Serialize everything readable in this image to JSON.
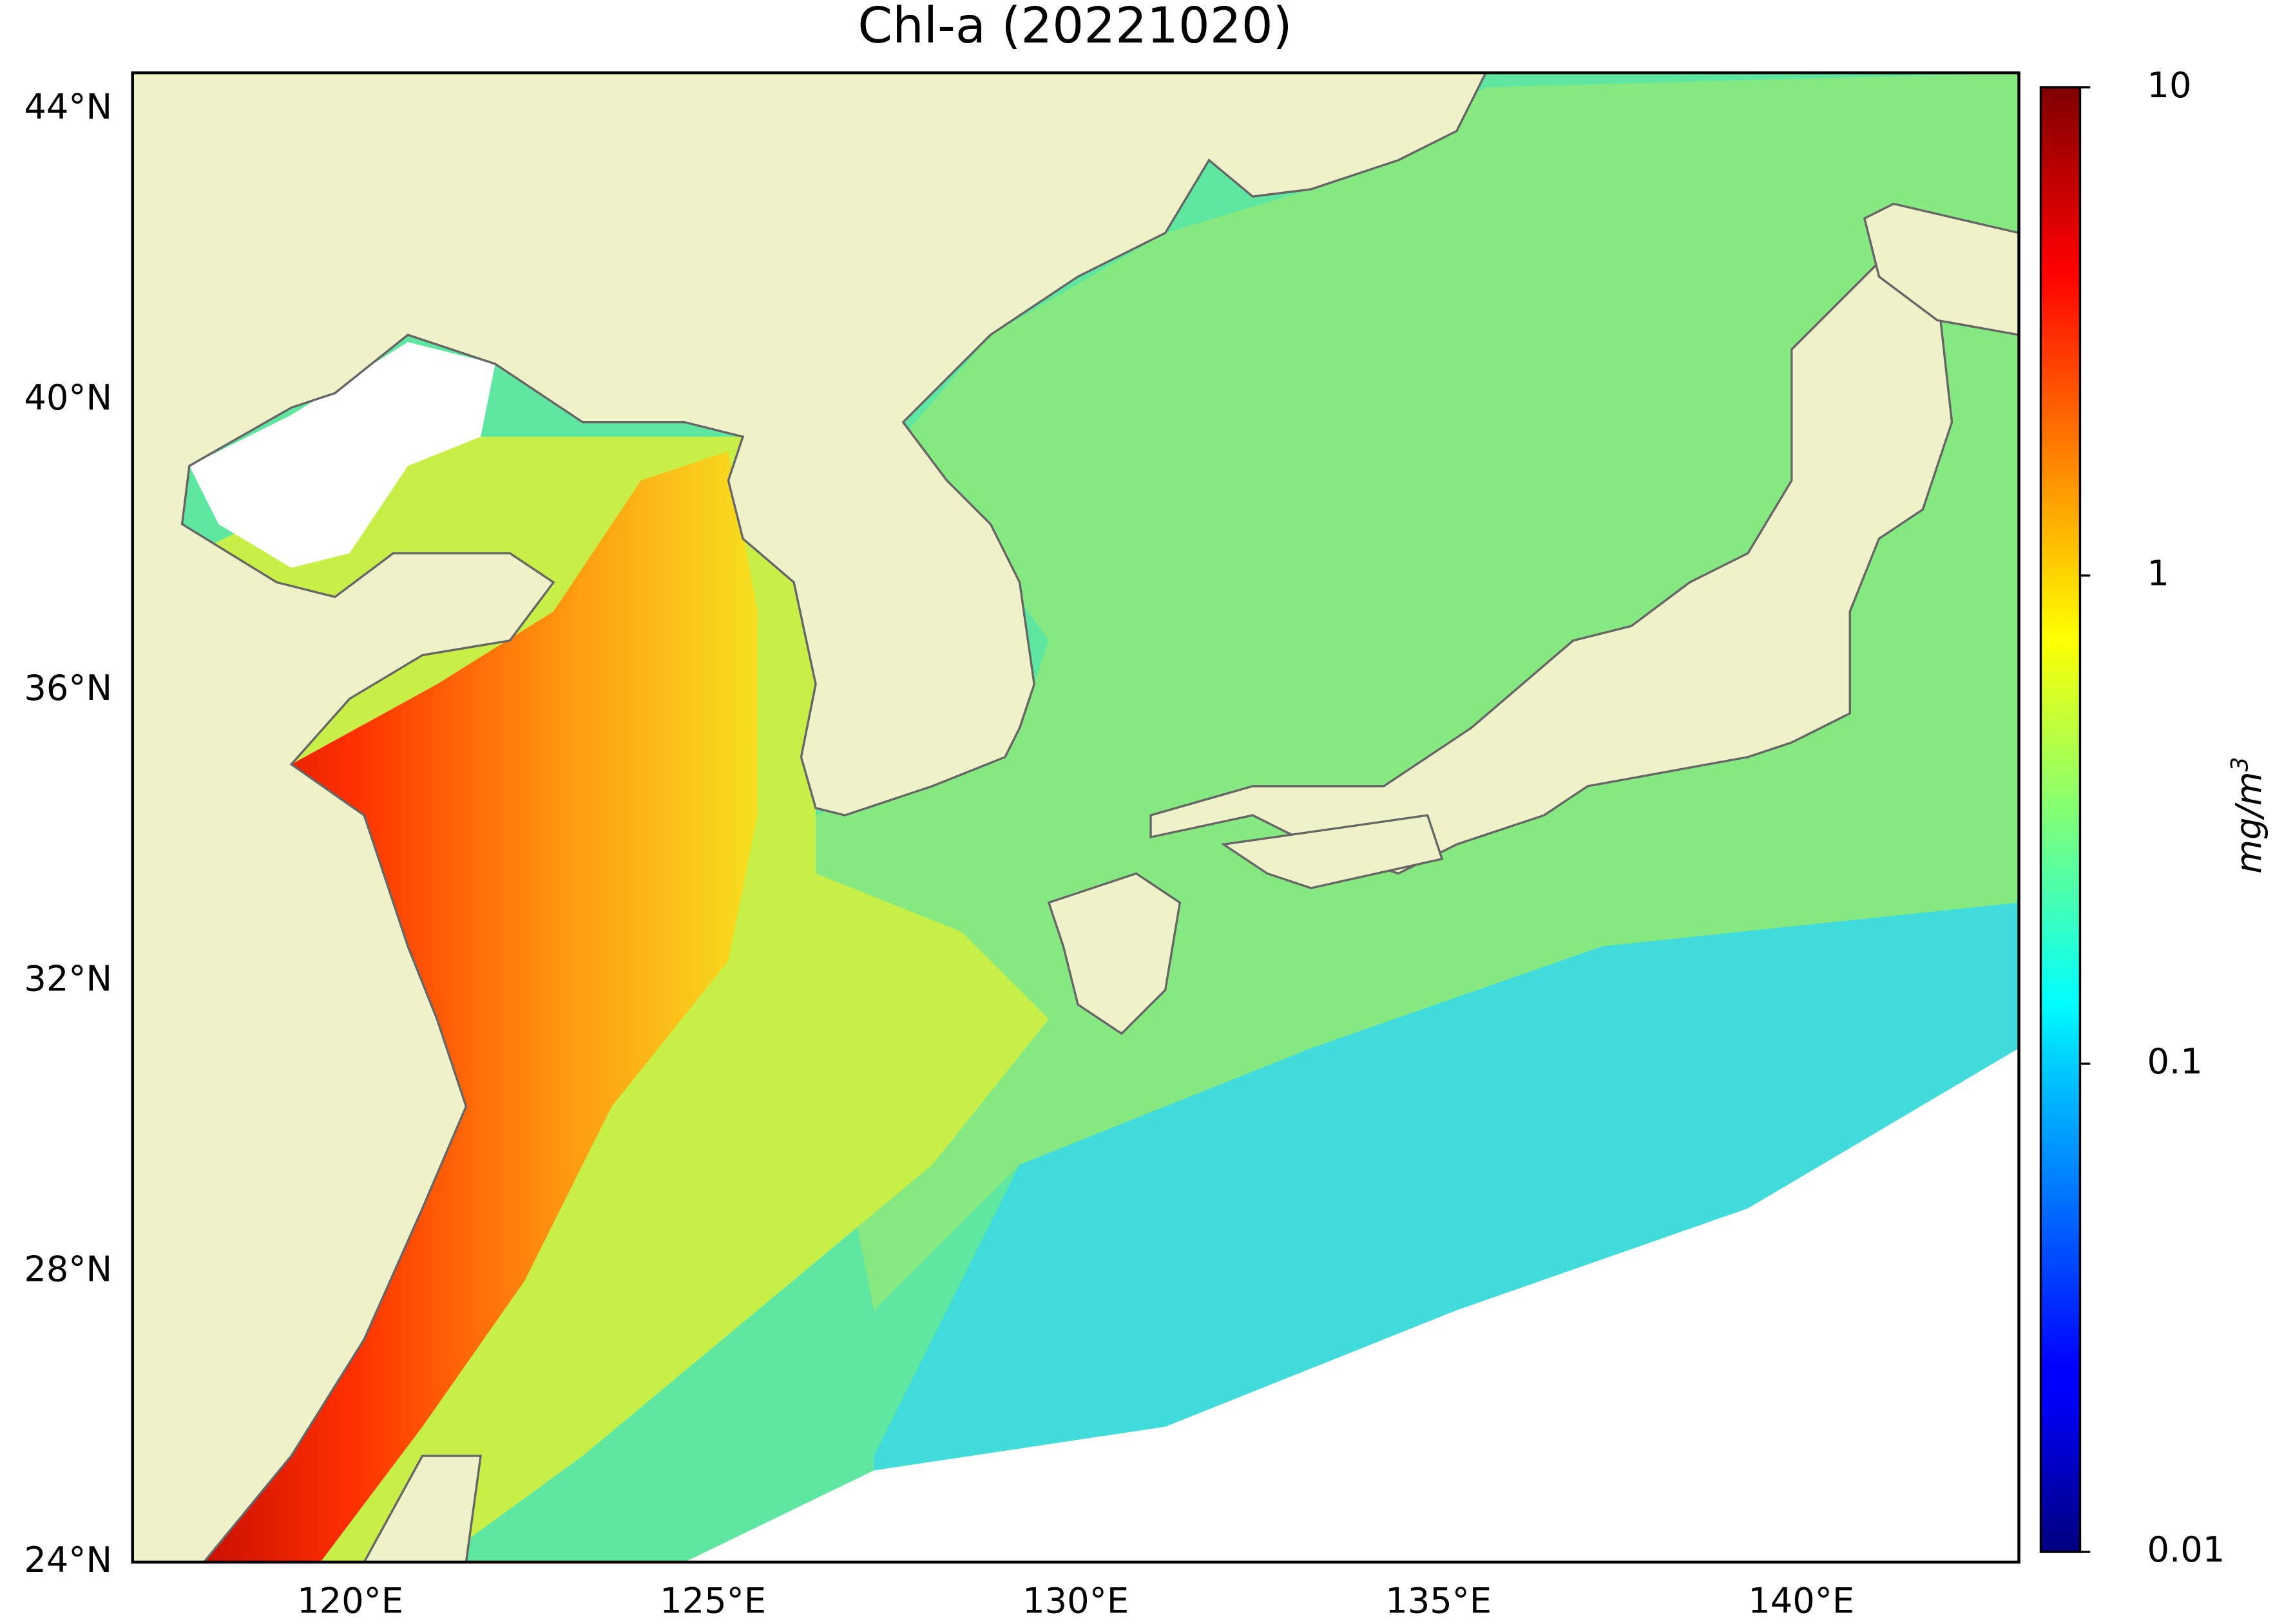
{
  "title": "Chl-a (20221020)",
  "map": {
    "xlim": [
      117,
      143
    ],
    "ylim": [
      24,
      44.5
    ],
    "xticks": [
      {
        "value": 120,
        "label": "120°E"
      },
      {
        "value": 125,
        "label": "125°E"
      },
      {
        "value": 130,
        "label": "130°E"
      },
      {
        "value": 135,
        "label": "135°E"
      },
      {
        "value": 140,
        "label": "140°E"
      }
    ],
    "yticks": [
      {
        "value": 24,
        "label": "24°N"
      },
      {
        "value": 28,
        "label": "28°N"
      },
      {
        "value": 32,
        "label": "32°N"
      },
      {
        "value": 36,
        "label": "36°N"
      },
      {
        "value": 40,
        "label": "40°N"
      },
      {
        "value": 44,
        "label": "44°N"
      }
    ]
  },
  "colorbar": {
    "scale": "log",
    "lim": [
      0.01,
      10
    ],
    "ticks": [
      0.01,
      0.1,
      1,
      10
    ],
    "colormap": "jet",
    "label": "mg/m",
    "label_exponent": "3"
  }
}
